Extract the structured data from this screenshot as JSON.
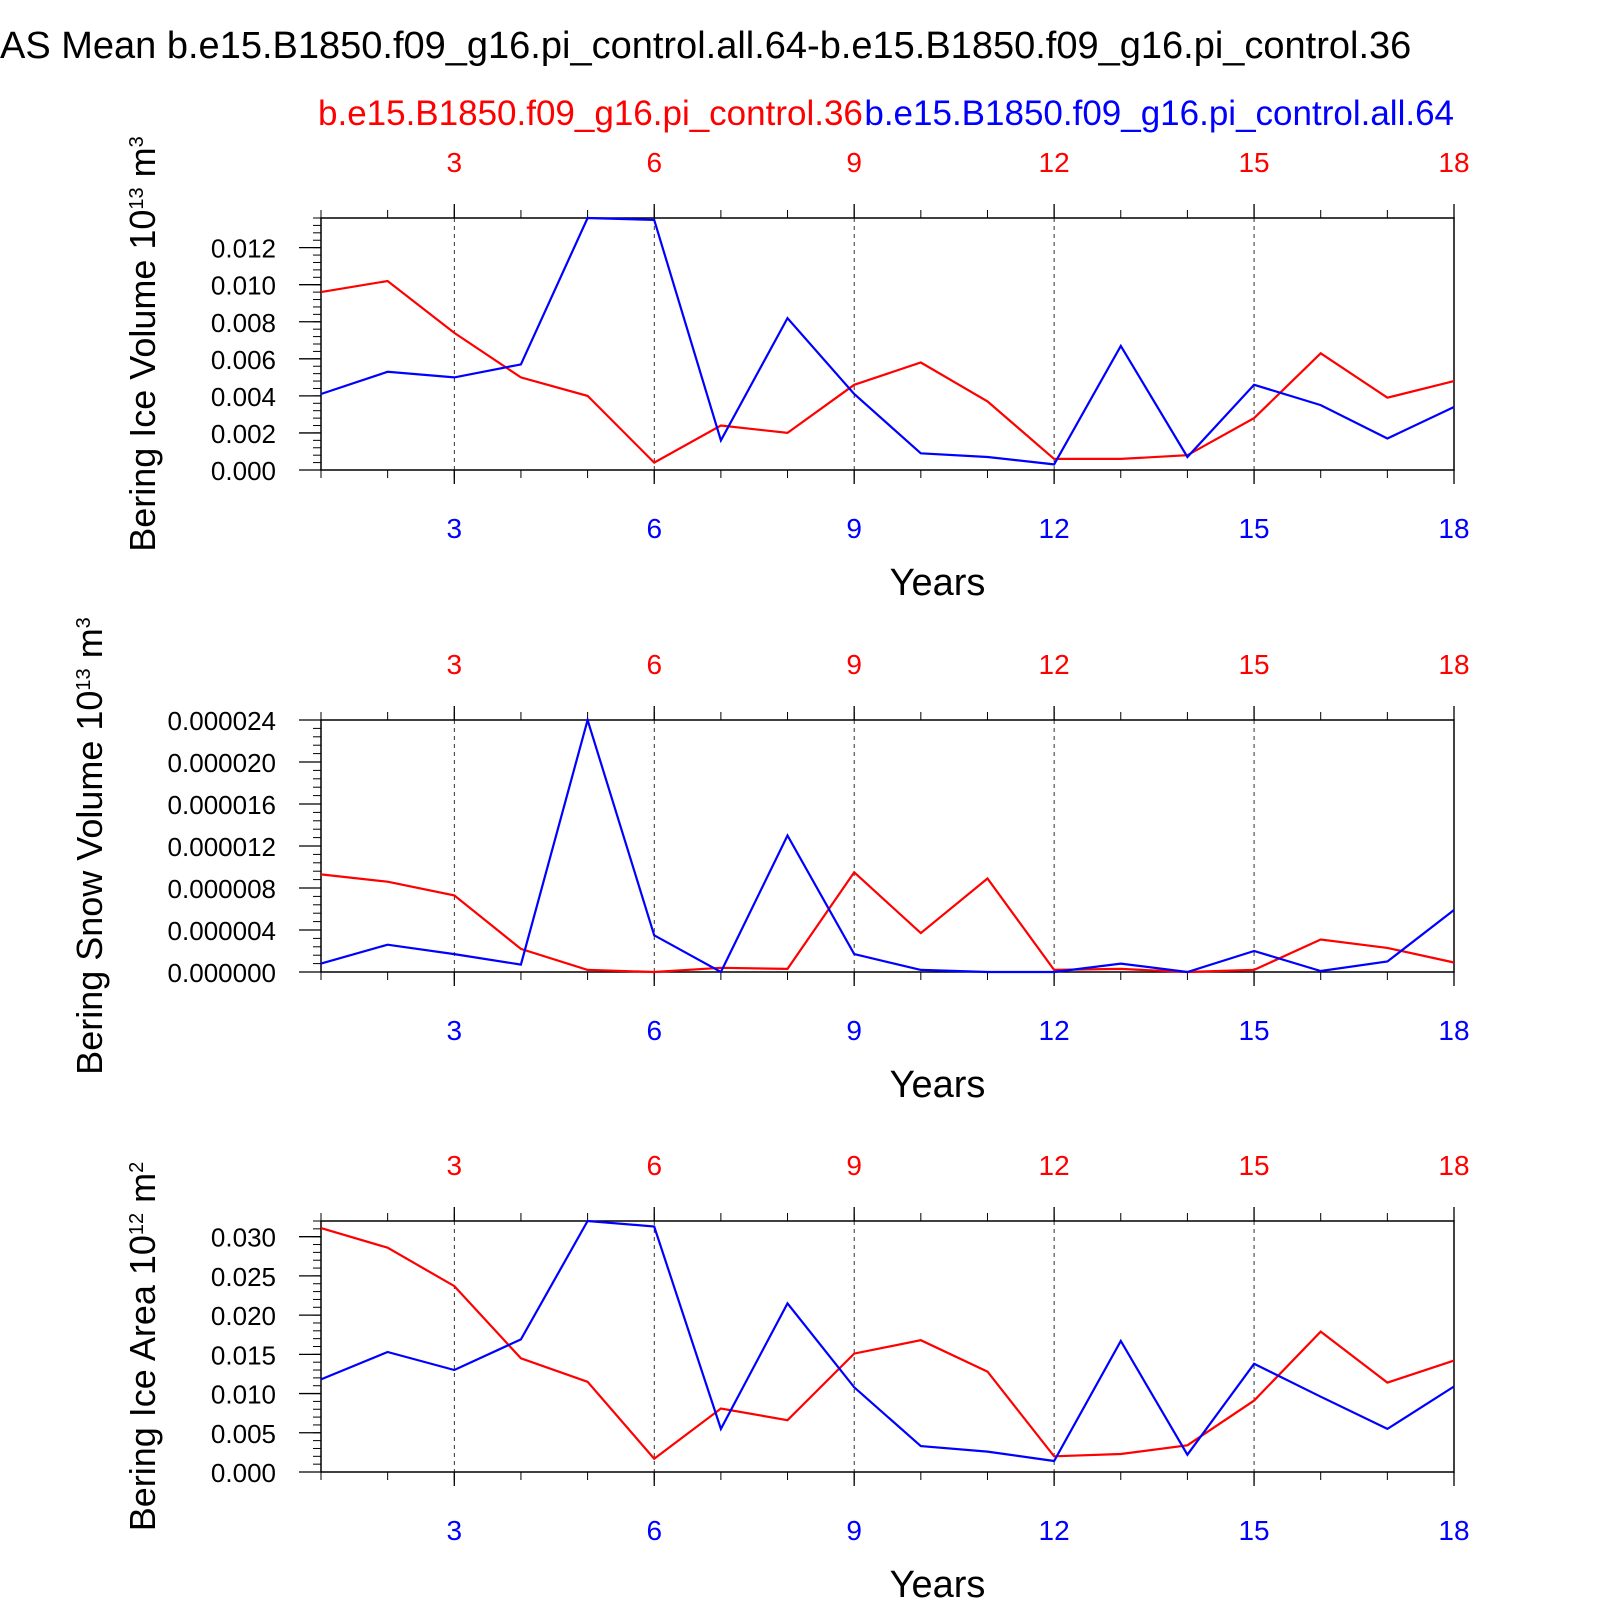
{
  "title": "AS Mean b.e15.B1850.f09_g16.pi_control.all.64-b.e15.B1850.f09_g16.pi_control.36",
  "legend": {
    "red_label": "b.e15.B1850.f09_g16.pi_control.36",
    "blue_label": "b.e15.B1850.f09_g16.pi_control.all.64"
  },
  "colors": {
    "red": "#ff0000",
    "blue": "#0000ff",
    "axis": "#000000",
    "grid": "#000000"
  },
  "chart_data": [
    {
      "type": "line",
      "ylabel": "Bering Ice Volume",
      "yunit_base": "10",
      "yunit_exp": "13",
      "yunit_suffix": "m",
      "yunit_suffix_exp": "3",
      "xlabel": "Years",
      "x": [
        1,
        2,
        3,
        4,
        5,
        6,
        7,
        8,
        9,
        10,
        11,
        12,
        13,
        14,
        15,
        16,
        17,
        18
      ],
      "xlim": [
        1,
        18
      ],
      "xticks_top": [
        "3",
        "6",
        "9",
        "12",
        "15",
        "18"
      ],
      "xticks_bottom": [
        "3",
        "6",
        "9",
        "12",
        "15",
        "18"
      ],
      "ylim": [
        0,
        0.0136
      ],
      "yticks": [
        "0.000",
        "0.002",
        "0.004",
        "0.006",
        "0.008",
        "0.010",
        "0.012"
      ],
      "ytick_values": [
        0,
        0.002,
        0.004,
        0.006,
        0.008,
        0.01,
        0.012
      ],
      "grid": "vertical dashed at 3,6,9,12,15",
      "series": [
        {
          "color": "red",
          "values": [
            0.0096,
            0.0102,
            0.0074,
            0.005,
            0.004,
            0.0004,
            0.0024,
            0.002,
            0.0046,
            0.0058,
            0.0037,
            0.0006,
            0.0006,
            0.0008,
            0.0028,
            0.0063,
            0.0039,
            0.0048
          ]
        },
        {
          "color": "blue",
          "values": [
            0.0041,
            0.0053,
            0.005,
            0.0057,
            0.0136,
            0.0135,
            0.0016,
            0.0082,
            0.0041,
            0.0009,
            0.0007,
            0.0003,
            0.0067,
            0.0007,
            0.0046,
            0.0035,
            0.0017,
            0.0034
          ]
        }
      ]
    },
    {
      "type": "line",
      "ylabel": "Bering Snow Volume",
      "yunit_base": "10",
      "yunit_exp": "13",
      "yunit_suffix": "m",
      "yunit_suffix_exp": "3",
      "xlabel": "Years",
      "x": [
        1,
        2,
        3,
        4,
        5,
        6,
        7,
        8,
        9,
        10,
        11,
        12,
        13,
        14,
        15,
        16,
        17,
        18
      ],
      "xlim": [
        1,
        18
      ],
      "xticks_top": [
        "3",
        "6",
        "9",
        "12",
        "15",
        "18"
      ],
      "xticks_bottom": [
        "3",
        "6",
        "9",
        "12",
        "15",
        "18"
      ],
      "ylim": [
        0,
        2.4e-05
      ],
      "yticks": [
        "0.000000",
        "0.000004",
        "0.000008",
        "0.000012",
        "0.000016",
        "0.000020",
        "0.000024"
      ],
      "ytick_values": [
        0,
        4e-06,
        8e-06,
        1.2e-05,
        1.6e-05,
        2e-05,
        2.4e-05
      ],
      "grid": "vertical dashed at 3,6,9,12,15",
      "series": [
        {
          "color": "red",
          "values": [
            9.3e-06,
            8.6e-06,
            7.3e-06,
            2.2e-06,
            2e-07,
            0.0,
            4e-07,
            3e-07,
            9.5e-06,
            3.7e-06,
            8.9e-06,
            2e-07,
            3e-07,
            0.0,
            2e-07,
            3.1e-06,
            2.3e-06,
            9e-07
          ]
        },
        {
          "color": "blue",
          "values": [
            8e-07,
            2.6e-06,
            1.7e-06,
            7e-07,
            2.4e-05,
            3.5e-06,
            0.0,
            1.3e-05,
            1.7e-06,
            2e-07,
            0.0,
            0.0,
            8e-07,
            0.0,
            2e-06,
            1e-07,
            1e-06,
            5.9e-06
          ]
        }
      ]
    },
    {
      "type": "line",
      "ylabel": "Bering Ice Area",
      "yunit_base": "10",
      "yunit_exp": "12",
      "yunit_suffix": "m",
      "yunit_suffix_exp": "2",
      "xlabel": "Years",
      "x": [
        1,
        2,
        3,
        4,
        5,
        6,
        7,
        8,
        9,
        10,
        11,
        12,
        13,
        14,
        15,
        16,
        17,
        18
      ],
      "xlim": [
        1,
        18
      ],
      "xticks_top": [
        "3",
        "6",
        "9",
        "12",
        "15",
        "18"
      ],
      "xticks_bottom": [
        "3",
        "6",
        "9",
        "12",
        "15",
        "18"
      ],
      "ylim": [
        0,
        0.032
      ],
      "yticks": [
        "0.000",
        "0.005",
        "0.010",
        "0.015",
        "0.020",
        "0.025",
        "0.030"
      ],
      "ytick_values": [
        0,
        0.005,
        0.01,
        0.015,
        0.02,
        0.025,
        0.03
      ],
      "grid": "vertical dashed at 3,6,9,12,15",
      "series": [
        {
          "color": "red",
          "values": [
            0.0311,
            0.0286,
            0.0237,
            0.0145,
            0.0115,
            0.0017,
            0.0081,
            0.0066,
            0.0151,
            0.0168,
            0.0128,
            0.002,
            0.0023,
            0.0034,
            0.0091,
            0.0179,
            0.0114,
            0.0142
          ]
        },
        {
          "color": "blue",
          "values": [
            0.0118,
            0.0153,
            0.013,
            0.0169,
            0.032,
            0.0313,
            0.0055,
            0.0215,
            0.0108,
            0.0033,
            0.0026,
            0.0014,
            0.0167,
            0.0022,
            0.0138,
            0.0096,
            0.0055,
            0.0109
          ]
        }
      ]
    }
  ]
}
